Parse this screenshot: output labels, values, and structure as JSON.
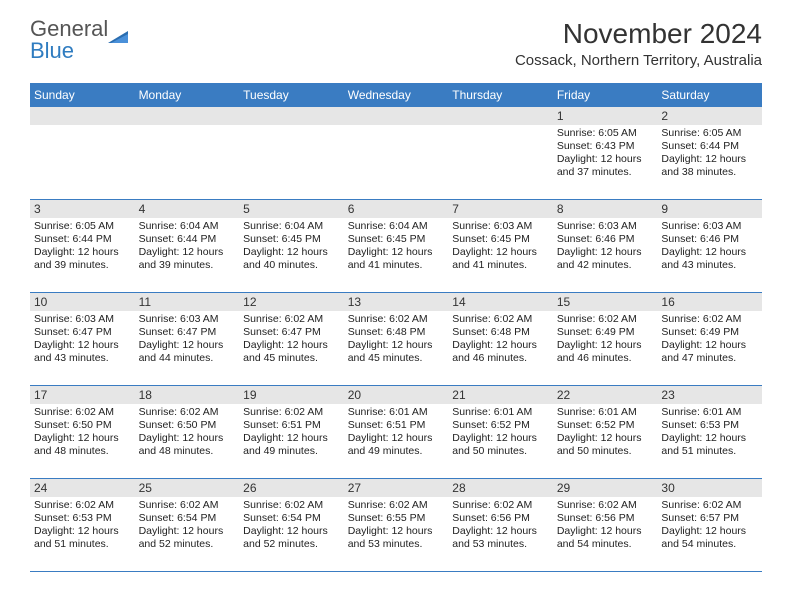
{
  "logo": {
    "word1": "General",
    "word2": "Blue"
  },
  "title": "November 2024",
  "location": "Cossack, Northern Territory, Australia",
  "header_bg": "#3a7cc2",
  "weekdays": [
    "Sunday",
    "Monday",
    "Tuesday",
    "Wednesday",
    "Thursday",
    "Friday",
    "Saturday"
  ],
  "weeks": [
    [
      {
        "n": "",
        "empty": true,
        "sr": "",
        "ss": "",
        "dl": ""
      },
      {
        "n": "",
        "empty": true,
        "sr": "",
        "ss": "",
        "dl": ""
      },
      {
        "n": "",
        "empty": true,
        "sr": "",
        "ss": "",
        "dl": ""
      },
      {
        "n": "",
        "empty": true,
        "sr": "",
        "ss": "",
        "dl": ""
      },
      {
        "n": "",
        "empty": true,
        "sr": "",
        "ss": "",
        "dl": ""
      },
      {
        "n": "1",
        "sr": "Sunrise: 6:05 AM",
        "ss": "Sunset: 6:43 PM",
        "dl": "Daylight: 12 hours and 37 minutes."
      },
      {
        "n": "2",
        "sr": "Sunrise: 6:05 AM",
        "ss": "Sunset: 6:44 PM",
        "dl": "Daylight: 12 hours and 38 minutes."
      }
    ],
    [
      {
        "n": "3",
        "sr": "Sunrise: 6:05 AM",
        "ss": "Sunset: 6:44 PM",
        "dl": "Daylight: 12 hours and 39 minutes."
      },
      {
        "n": "4",
        "sr": "Sunrise: 6:04 AM",
        "ss": "Sunset: 6:44 PM",
        "dl": "Daylight: 12 hours and 39 minutes."
      },
      {
        "n": "5",
        "sr": "Sunrise: 6:04 AM",
        "ss": "Sunset: 6:45 PM",
        "dl": "Daylight: 12 hours and 40 minutes."
      },
      {
        "n": "6",
        "sr": "Sunrise: 6:04 AM",
        "ss": "Sunset: 6:45 PM",
        "dl": "Daylight: 12 hours and 41 minutes."
      },
      {
        "n": "7",
        "sr": "Sunrise: 6:03 AM",
        "ss": "Sunset: 6:45 PM",
        "dl": "Daylight: 12 hours and 41 minutes."
      },
      {
        "n": "8",
        "sr": "Sunrise: 6:03 AM",
        "ss": "Sunset: 6:46 PM",
        "dl": "Daylight: 12 hours and 42 minutes."
      },
      {
        "n": "9",
        "sr": "Sunrise: 6:03 AM",
        "ss": "Sunset: 6:46 PM",
        "dl": "Daylight: 12 hours and 43 minutes."
      }
    ],
    [
      {
        "n": "10",
        "sr": "Sunrise: 6:03 AM",
        "ss": "Sunset: 6:47 PM",
        "dl": "Daylight: 12 hours and 43 minutes."
      },
      {
        "n": "11",
        "sr": "Sunrise: 6:03 AM",
        "ss": "Sunset: 6:47 PM",
        "dl": "Daylight: 12 hours and 44 minutes."
      },
      {
        "n": "12",
        "sr": "Sunrise: 6:02 AM",
        "ss": "Sunset: 6:47 PM",
        "dl": "Daylight: 12 hours and 45 minutes."
      },
      {
        "n": "13",
        "sr": "Sunrise: 6:02 AM",
        "ss": "Sunset: 6:48 PM",
        "dl": "Daylight: 12 hours and 45 minutes."
      },
      {
        "n": "14",
        "sr": "Sunrise: 6:02 AM",
        "ss": "Sunset: 6:48 PM",
        "dl": "Daylight: 12 hours and 46 minutes."
      },
      {
        "n": "15",
        "sr": "Sunrise: 6:02 AM",
        "ss": "Sunset: 6:49 PM",
        "dl": "Daylight: 12 hours and 46 minutes."
      },
      {
        "n": "16",
        "sr": "Sunrise: 6:02 AM",
        "ss": "Sunset: 6:49 PM",
        "dl": "Daylight: 12 hours and 47 minutes."
      }
    ],
    [
      {
        "n": "17",
        "sr": "Sunrise: 6:02 AM",
        "ss": "Sunset: 6:50 PM",
        "dl": "Daylight: 12 hours and 48 minutes."
      },
      {
        "n": "18",
        "sr": "Sunrise: 6:02 AM",
        "ss": "Sunset: 6:50 PM",
        "dl": "Daylight: 12 hours and 48 minutes."
      },
      {
        "n": "19",
        "sr": "Sunrise: 6:02 AM",
        "ss": "Sunset: 6:51 PM",
        "dl": "Daylight: 12 hours and 49 minutes."
      },
      {
        "n": "20",
        "sr": "Sunrise: 6:01 AM",
        "ss": "Sunset: 6:51 PM",
        "dl": "Daylight: 12 hours and 49 minutes."
      },
      {
        "n": "21",
        "sr": "Sunrise: 6:01 AM",
        "ss": "Sunset: 6:52 PM",
        "dl": "Daylight: 12 hours and 50 minutes."
      },
      {
        "n": "22",
        "sr": "Sunrise: 6:01 AM",
        "ss": "Sunset: 6:52 PM",
        "dl": "Daylight: 12 hours and 50 minutes."
      },
      {
        "n": "23",
        "sr": "Sunrise: 6:01 AM",
        "ss": "Sunset: 6:53 PM",
        "dl": "Daylight: 12 hours and 51 minutes."
      }
    ],
    [
      {
        "n": "24",
        "sr": "Sunrise: 6:02 AM",
        "ss": "Sunset: 6:53 PM",
        "dl": "Daylight: 12 hours and 51 minutes."
      },
      {
        "n": "25",
        "sr": "Sunrise: 6:02 AM",
        "ss": "Sunset: 6:54 PM",
        "dl": "Daylight: 12 hours and 52 minutes."
      },
      {
        "n": "26",
        "sr": "Sunrise: 6:02 AM",
        "ss": "Sunset: 6:54 PM",
        "dl": "Daylight: 12 hours and 52 minutes."
      },
      {
        "n": "27",
        "sr": "Sunrise: 6:02 AM",
        "ss": "Sunset: 6:55 PM",
        "dl": "Daylight: 12 hours and 53 minutes."
      },
      {
        "n": "28",
        "sr": "Sunrise: 6:02 AM",
        "ss": "Sunset: 6:56 PM",
        "dl": "Daylight: 12 hours and 53 minutes."
      },
      {
        "n": "29",
        "sr": "Sunrise: 6:02 AM",
        "ss": "Sunset: 6:56 PM",
        "dl": "Daylight: 12 hours and 54 minutes."
      },
      {
        "n": "30",
        "sr": "Sunrise: 6:02 AM",
        "ss": "Sunset: 6:57 PM",
        "dl": "Daylight: 12 hours and 54 minutes."
      }
    ]
  ]
}
